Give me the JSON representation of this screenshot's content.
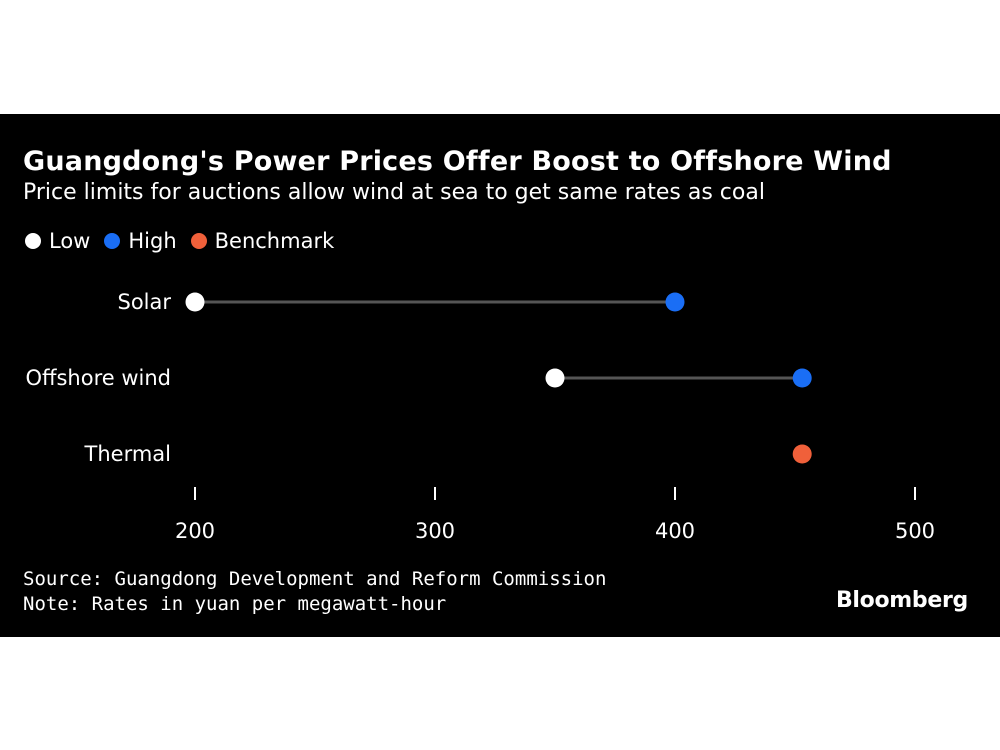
{
  "chart_data": {
    "type": "dumbbell",
    "title": "Guangdong's Power Prices Offer Boost to Offshore Wind",
    "subtitle": "Price limits for auctions allow wind at sea to get same rates as coal",
    "legend": [
      {
        "label": "Low",
        "color": "#ffffff"
      },
      {
        "label": "High",
        "color": "#1a6ef5"
      },
      {
        "label": "Benchmark",
        "color": "#f0603a"
      }
    ],
    "categories": [
      "Solar",
      "Offshore wind",
      "Thermal"
    ],
    "series": [
      {
        "name": "Low",
        "values": [
          200,
          350,
          null
        ]
      },
      {
        "name": "High",
        "values": [
          400,
          453,
          null
        ]
      },
      {
        "name": "Benchmark",
        "values": [
          null,
          null,
          453
        ]
      }
    ],
    "xlim": [
      200,
      500
    ],
    "xticks": [
      200,
      300,
      400,
      500
    ],
    "xlabel": "",
    "ylabel": ""
  },
  "footer": {
    "source": "Source: Guangdong Development and Reform Commission",
    "note": "Note: Rates in yuan per megawatt-hour"
  },
  "brand": "Bloomberg",
  "colors": {
    "background": "#000000",
    "connector": "#555555",
    "text": "#ffffff"
  }
}
